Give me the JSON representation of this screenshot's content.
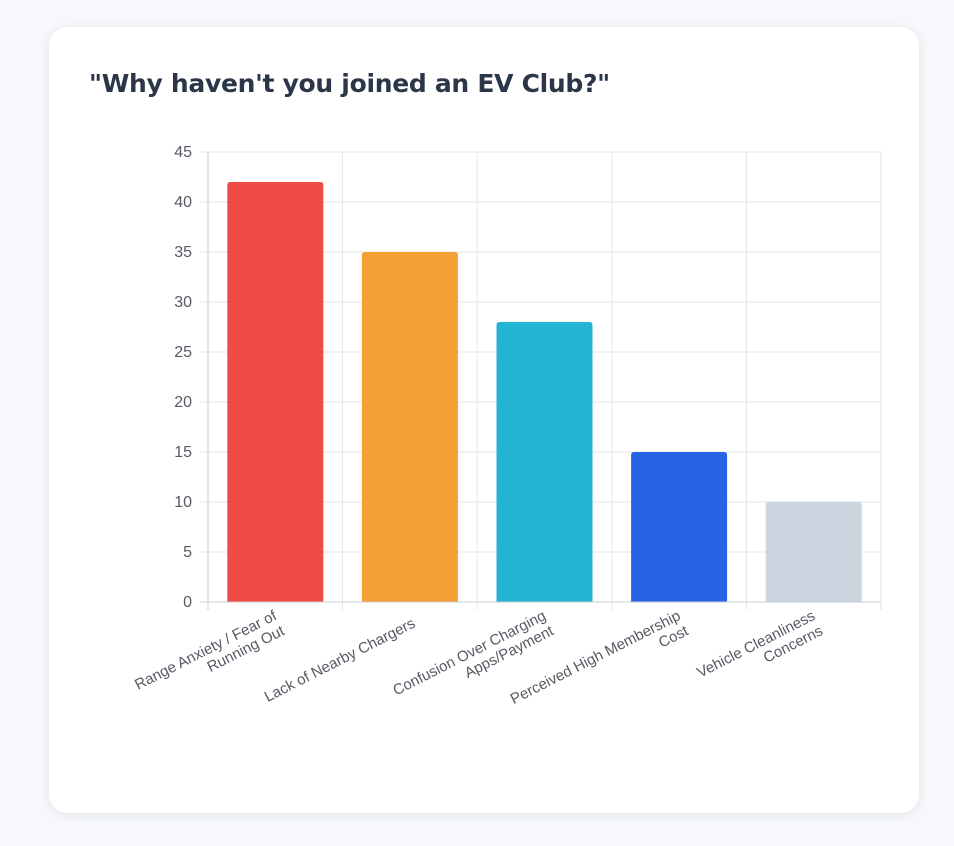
{
  "card": {
    "title": "\"Why haven't you joined an EV Club?\""
  },
  "chart_data": {
    "type": "bar",
    "categories": [
      [
        "Range Anxiety / Fear of",
        "Running Out"
      ],
      [
        "Lack of Nearby Chargers"
      ],
      [
        "Confusion Over Charging",
        "Apps/Payment"
      ],
      [
        "Perceived High Membership",
        "Cost"
      ],
      [
        "Vehicle Cleanliness",
        "Concerns"
      ]
    ],
    "values": [
      42,
      35,
      28,
      15,
      10
    ],
    "colors": [
      "#ef4a48",
      "#f4a035",
      "#25b5d4",
      "#2764e3",
      "#cbd5df"
    ],
    "yticks": [
      "0",
      "5",
      "10",
      "15",
      "20",
      "25",
      "30",
      "35",
      "40",
      "45"
    ],
    "ylim": [
      0,
      45
    ],
    "grid": true,
    "legend": "none"
  }
}
